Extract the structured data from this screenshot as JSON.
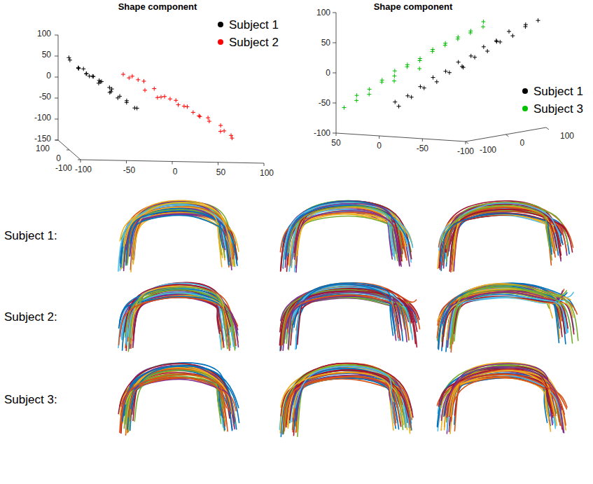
{
  "chart_data": [
    {
      "type": "scatter3d",
      "title": "Shape component",
      "legend": "top-right",
      "grid": false,
      "xlim": [
        -100,
        100
      ],
      "xticks": [
        -100,
        -50,
        0,
        50,
        100
      ],
      "ylim": [
        -100,
        100
      ],
      "yticks": [
        -100,
        0,
        100
      ],
      "zlim": [
        -150,
        100
      ],
      "zticks": [
        -150,
        -100,
        -50,
        0,
        50,
        100
      ],
      "series": [
        {
          "name": "Subject 1",
          "color": "#000000",
          "marker": "plus",
          "x": [
            -98,
            -95,
            -92,
            -90,
            -87,
            -85,
            -82,
            -80,
            -78,
            -75,
            -72,
            -70,
            -68,
            -65,
            -62,
            -60,
            -57,
            -55,
            -52,
            -50,
            -45,
            -40,
            -35,
            -30,
            -25
          ],
          "y": [
            20,
            -40,
            60,
            0,
            -20,
            40,
            -60,
            10,
            30,
            -10,
            50,
            -30,
            0,
            20,
            -50,
            40,
            -20,
            10,
            -40,
            30,
            0,
            -20,
            20,
            -10,
            10
          ],
          "z": [
            65,
            55,
            50,
            45,
            48,
            35,
            40,
            30,
            25,
            28,
            15,
            20,
            10,
            12,
            0,
            5,
            -5,
            -2,
            -15,
            -10,
            -20,
            -30,
            -35,
            -45,
            -50
          ]
        },
        {
          "name": "Subject 2",
          "color": "#ff0000",
          "marker": "plus",
          "x": [
            -40,
            -35,
            -30,
            -25,
            -20,
            -15,
            -10,
            -5,
            0,
            5,
            10,
            15,
            20,
            25,
            30,
            35,
            40,
            45,
            50,
            55,
            60,
            65,
            70,
            75,
            80
          ],
          "y": [
            10,
            -30,
            40,
            0,
            -20,
            30,
            -50,
            20,
            0,
            -40,
            50,
            -10,
            10,
            -30,
            40,
            0,
            -20,
            30,
            -10,
            20,
            -40,
            0,
            10,
            -20,
            30
          ],
          "z": [
            30,
            35,
            15,
            20,
            0,
            10,
            -10,
            -5,
            -20,
            -15,
            -30,
            -25,
            -40,
            -35,
            -50,
            -55,
            -60,
            -70,
            -65,
            -80,
            -90,
            -85,
            -100,
            -110,
            -115
          ]
        }
      ]
    },
    {
      "type": "scatter3d",
      "title": "Shape component",
      "legend": "bottom-right",
      "grid": false,
      "xlim": [
        50,
        -100
      ],
      "xticks": [
        50,
        0,
        -50,
        -100
      ],
      "ylim": [
        -100,
        100
      ],
      "yticks": [
        -100,
        0,
        100
      ],
      "zlim": [
        -100,
        100
      ],
      "zticks": [
        -100,
        -50,
        0,
        50,
        100
      ],
      "series": [
        {
          "name": "Subject 1",
          "color": "#000000",
          "marker": "plus",
          "x": [
            -100,
            -95,
            -90,
            -85,
            -80,
            -75,
            -70,
            -65,
            -60,
            -55,
            -50,
            -45,
            -40,
            -35,
            -30,
            -25,
            -20,
            -15,
            -10,
            -5,
            0,
            5,
            10,
            -60,
            -80
          ],
          "y": [
            80,
            60,
            70,
            40,
            60,
            30,
            50,
            20,
            40,
            10,
            30,
            0,
            20,
            -10,
            10,
            -20,
            0,
            -30,
            -10,
            -40,
            -20,
            -50,
            -30,
            -20,
            20
          ],
          "z": [
            80,
            75,
            70,
            65,
            55,
            50,
            45,
            40,
            30,
            25,
            20,
            15,
            5,
            0,
            -5,
            -10,
            -20,
            -25,
            -30,
            -40,
            -45,
            -50,
            -60,
            10,
            50
          ]
        },
        {
          "name": "Subject 3",
          "color": "#00c000",
          "marker": "plus",
          "x": [
            50,
            45,
            40,
            35,
            30,
            25,
            20,
            15,
            10,
            5,
            0,
            -5,
            -10,
            -15,
            -20,
            -25,
            -30,
            -35,
            -40,
            -45,
            -50,
            -55,
            -60,
            20,
            0
          ],
          "y": [
            -80,
            -60,
            -70,
            -50,
            -60,
            -40,
            -50,
            -30,
            -40,
            -20,
            -30,
            -10,
            -20,
            0,
            -10,
            10,
            0,
            20,
            10,
            30,
            20,
            40,
            30,
            -20,
            0
          ],
          "z": [
            -60,
            -50,
            -40,
            -40,
            -30,
            -20,
            -15,
            -10,
            0,
            5,
            10,
            15,
            20,
            30,
            35,
            40,
            45,
            50,
            55,
            60,
            65,
            70,
            80,
            -20,
            0
          ]
        }
      ]
    }
  ],
  "panels": {
    "rows": [
      {
        "label": "Subject 1:"
      },
      {
        "label": "Subject 2:"
      },
      {
        "label": "Subject 3:"
      }
    ]
  }
}
